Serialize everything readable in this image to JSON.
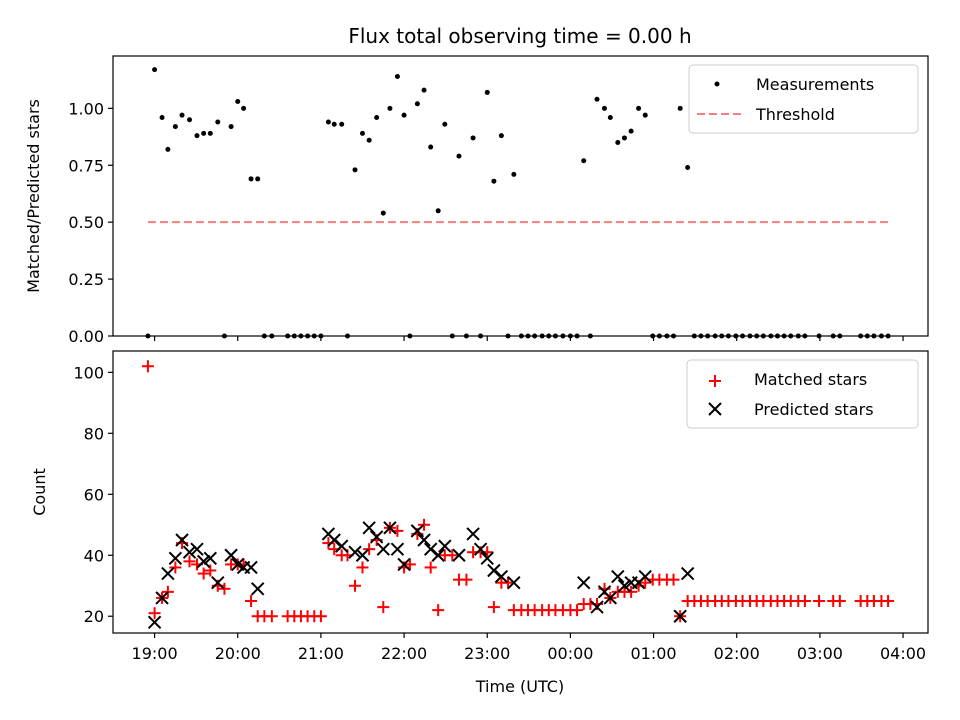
{
  "title": "Flux total observing time = 0.00 h",
  "x_tick_labels": [
    "19:00",
    "20:00",
    "21:00",
    "22:00",
    "23:00",
    "00:00",
    "01:00",
    "02:00",
    "03:00",
    "04:00"
  ],
  "chart_data": [
    {
      "type": "scatter",
      "ylabel": "Matched/Predicted stars",
      "xlabel": "",
      "xlim": [
        -0.5,
        9.3
      ],
      "ylim": [
        0,
        1.23
      ],
      "y_ticks": [
        0.0,
        0.25,
        0.5,
        0.75,
        1.0
      ],
      "y_tick_labels": [
        "0.00",
        "0.25",
        "0.50",
        "0.75",
        "1.00"
      ],
      "legend_position": "upper right",
      "series": [
        {
          "name": "Measurements",
          "marker": "dot",
          "color": "#000000",
          "points": [
            [
              -0.08,
              0.0
            ],
            [
              0.0,
              1.17
            ],
            [
              0.09,
              0.96
            ],
            [
              0.16,
              0.82
            ],
            [
              0.25,
              0.92
            ],
            [
              0.33,
              0.97
            ],
            [
              0.42,
              0.95
            ],
            [
              0.51,
              0.88
            ],
            [
              0.59,
              0.89
            ],
            [
              0.67,
              0.89
            ],
            [
              0.76,
              0.94
            ],
            [
              0.84,
              0.0
            ],
            [
              0.92,
              0.92
            ],
            [
              1.0,
              1.03
            ],
            [
              1.07,
              1.0
            ],
            [
              1.16,
              0.69
            ],
            [
              1.24,
              0.69
            ],
            [
              1.32,
              0.0
            ],
            [
              1.41,
              0.0
            ],
            [
              1.6,
              0.0
            ],
            [
              1.68,
              0.0
            ],
            [
              1.76,
              0.0
            ],
            [
              1.84,
              0.0
            ],
            [
              1.92,
              0.0
            ],
            [
              2.0,
              0.0
            ],
            [
              2.09,
              0.94
            ],
            [
              2.16,
              0.93
            ],
            [
              2.25,
              0.93
            ],
            [
              2.32,
              0.0
            ],
            [
              2.41,
              0.73
            ],
            [
              2.5,
              0.89
            ],
            [
              2.58,
              0.86
            ],
            [
              2.67,
              0.96
            ],
            [
              2.75,
              0.54
            ],
            [
              2.83,
              1.0
            ],
            [
              2.92,
              1.14
            ],
            [
              3.0,
              0.97
            ],
            [
              3.07,
              0.0
            ],
            [
              3.16,
              1.02
            ],
            [
              3.24,
              1.08
            ],
            [
              3.32,
              0.83
            ],
            [
              3.41,
              0.55
            ],
            [
              3.49,
              0.93
            ],
            [
              3.58,
              0.0
            ],
            [
              3.66,
              0.79
            ],
            [
              3.75,
              0.0
            ],
            [
              3.83,
              0.87
            ],
            [
              3.92,
              0.0
            ],
            [
              4.0,
              1.07
            ],
            [
              4.08,
              0.68
            ],
            [
              4.17,
              0.88
            ],
            [
              4.25,
              0.0
            ],
            [
              4.32,
              0.71
            ],
            [
              4.41,
              0.0
            ],
            [
              4.49,
              0.0
            ],
            [
              4.57,
              0.0
            ],
            [
              4.66,
              0.0
            ],
            [
              4.74,
              0.0
            ],
            [
              4.82,
              0.0
            ],
            [
              4.91,
              0.0
            ],
            [
              5.0,
              0.0
            ],
            [
              5.08,
              0.0
            ],
            [
              5.16,
              0.77
            ],
            [
              5.24,
              0.0
            ],
            [
              5.32,
              1.04
            ],
            [
              5.41,
              1.0
            ],
            [
              5.48,
              0.96
            ],
            [
              5.57,
              0.85
            ],
            [
              5.65,
              0.87
            ],
            [
              5.73,
              0.9
            ],
            [
              5.82,
              1.0
            ],
            [
              5.9,
              0.97
            ],
            [
              5.99,
              0.0
            ],
            [
              6.07,
              0.0
            ],
            [
              6.16,
              0.0
            ],
            [
              6.24,
              0.0
            ],
            [
              6.32,
              1.0
            ],
            [
              6.41,
              0.74
            ],
            [
              6.49,
              0.0
            ],
            [
              6.57,
              0.0
            ],
            [
              6.65,
              0.0
            ],
            [
              6.74,
              0.0
            ],
            [
              6.82,
              0.0
            ],
            [
              6.9,
              0.0
            ],
            [
              6.99,
              0.0
            ],
            [
              7.07,
              0.0
            ],
            [
              7.16,
              0.0
            ],
            [
              7.24,
              0.0
            ],
            [
              7.32,
              0.0
            ],
            [
              7.41,
              0.0
            ],
            [
              7.49,
              0.0
            ],
            [
              7.57,
              0.0
            ],
            [
              7.65,
              0.0
            ],
            [
              7.74,
              0.0
            ],
            [
              7.82,
              0.0
            ],
            [
              7.99,
              0.0
            ],
            [
              8.16,
              0.0
            ],
            [
              8.24,
              0.0
            ],
            [
              8.49,
              0.0
            ],
            [
              8.57,
              0.0
            ],
            [
              8.65,
              0.0
            ],
            [
              8.74,
              0.0
            ],
            [
              8.82,
              0.0
            ]
          ]
        },
        {
          "name": "Threshold",
          "style": "dashed-line",
          "color": "#f08080",
          "points": [
            [
              -0.08,
              0.5
            ],
            [
              8.82,
              0.5
            ]
          ]
        }
      ]
    },
    {
      "type": "scatter",
      "ylabel": "Count",
      "xlabel": "Time (UTC)",
      "xlim": [
        -0.5,
        9.3
      ],
      "ylim": [
        14.5,
        107
      ],
      "y_ticks": [
        20,
        40,
        60,
        80,
        100
      ],
      "y_tick_labels": [
        "20",
        "40",
        "60",
        "80",
        "100"
      ],
      "legend_position": "upper right",
      "series": [
        {
          "name": "Matched stars",
          "marker": "plus",
          "color": "#ff0000",
          "points": [
            [
              -0.08,
              102
            ],
            [
              0.0,
              21
            ],
            [
              0.09,
              26
            ],
            [
              0.16,
              28
            ],
            [
              0.25,
              36
            ],
            [
              0.33,
              44
            ],
            [
              0.42,
              38
            ],
            [
              0.51,
              37
            ],
            [
              0.59,
              34
            ],
            [
              0.67,
              35
            ],
            [
              0.76,
              30
            ],
            [
              0.84,
              29
            ],
            [
              0.92,
              37
            ],
            [
              1.0,
              37
            ],
            [
              1.07,
              37
            ],
            [
              1.16,
              25
            ],
            [
              1.24,
              20
            ],
            [
              1.32,
              20
            ],
            [
              1.41,
              20
            ],
            [
              1.6,
              20
            ],
            [
              1.68,
              20
            ],
            [
              1.76,
              20
            ],
            [
              1.84,
              20
            ],
            [
              1.92,
              20
            ],
            [
              2.0,
              20
            ],
            [
              2.09,
              44
            ],
            [
              2.16,
              42
            ],
            [
              2.25,
              40
            ],
            [
              2.32,
              40
            ],
            [
              2.41,
              30
            ],
            [
              2.5,
              36
            ],
            [
              2.58,
              42
            ],
            [
              2.67,
              45
            ],
            [
              2.75,
              23
            ],
            [
              2.83,
              49
            ],
            [
              2.92,
              48
            ],
            [
              3.0,
              36
            ],
            [
              3.07,
              37
            ],
            [
              3.16,
              47
            ],
            [
              3.24,
              50
            ],
            [
              3.32,
              36
            ],
            [
              3.41,
              22
            ],
            [
              3.49,
              40
            ],
            [
              3.58,
              40
            ],
            [
              3.66,
              32
            ],
            [
              3.75,
              32
            ],
            [
              3.83,
              41
            ],
            [
              3.92,
              41
            ],
            [
              4.0,
              41
            ],
            [
              4.08,
              23
            ],
            [
              4.17,
              31
            ],
            [
              4.25,
              31
            ],
            [
              4.32,
              22
            ],
            [
              4.41,
              22
            ],
            [
              4.49,
              22
            ],
            [
              4.57,
              22
            ],
            [
              4.66,
              22
            ],
            [
              4.74,
              22
            ],
            [
              4.82,
              22
            ],
            [
              4.91,
              22
            ],
            [
              5.0,
              22
            ],
            [
              5.08,
              22
            ],
            [
              5.16,
              24
            ],
            [
              5.24,
              24
            ],
            [
              5.32,
              24
            ],
            [
              5.41,
              29
            ],
            [
              5.48,
              26
            ],
            [
              5.57,
              28
            ],
            [
              5.65,
              28
            ],
            [
              5.73,
              28
            ],
            [
              5.82,
              30
            ],
            [
              5.9,
              31
            ],
            [
              5.99,
              32
            ],
            [
              6.07,
              32
            ],
            [
              6.16,
              32
            ],
            [
              6.24,
              32
            ],
            [
              6.32,
              20
            ],
            [
              6.41,
              25
            ],
            [
              6.49,
              25
            ],
            [
              6.57,
              25
            ],
            [
              6.65,
              25
            ],
            [
              6.74,
              25
            ],
            [
              6.82,
              25
            ],
            [
              6.9,
              25
            ],
            [
              6.99,
              25
            ],
            [
              7.07,
              25
            ],
            [
              7.16,
              25
            ],
            [
              7.24,
              25
            ],
            [
              7.32,
              25
            ],
            [
              7.41,
              25
            ],
            [
              7.49,
              25
            ],
            [
              7.57,
              25
            ],
            [
              7.65,
              25
            ],
            [
              7.74,
              25
            ],
            [
              7.82,
              25
            ],
            [
              7.99,
              25
            ],
            [
              8.16,
              25
            ],
            [
              8.24,
              25
            ],
            [
              8.49,
              25
            ],
            [
              8.57,
              25
            ],
            [
              8.65,
              25
            ],
            [
              8.74,
              25
            ],
            [
              8.82,
              25
            ]
          ]
        },
        {
          "name": "Predicted stars",
          "marker": "x",
          "color": "#000000",
          "points": [
            [
              0.0,
              18
            ],
            [
              0.09,
              26
            ],
            [
              0.16,
              34
            ],
            [
              0.25,
              39
            ],
            [
              0.33,
              45
            ],
            [
              0.42,
              41
            ],
            [
              0.51,
              42
            ],
            [
              0.59,
              38
            ],
            [
              0.67,
              39
            ],
            [
              0.76,
              31
            ],
            [
              0.92,
              40
            ],
            [
              1.0,
              37
            ],
            [
              1.07,
              36
            ],
            [
              1.16,
              36
            ],
            [
              1.24,
              29
            ],
            [
              2.09,
              47
            ],
            [
              2.16,
              45
            ],
            [
              2.25,
              43
            ],
            [
              2.41,
              41
            ],
            [
              2.5,
              40
            ],
            [
              2.58,
              49
            ],
            [
              2.67,
              46
            ],
            [
              2.75,
              42
            ],
            [
              2.83,
              49
            ],
            [
              2.92,
              42
            ],
            [
              3.0,
              37
            ],
            [
              3.16,
              48
            ],
            [
              3.24,
              45
            ],
            [
              3.32,
              42
            ],
            [
              3.41,
              40
            ],
            [
              3.49,
              43
            ],
            [
              3.66,
              40
            ],
            [
              3.83,
              47
            ],
            [
              3.92,
              42
            ],
            [
              4.0,
              39
            ],
            [
              4.08,
              35
            ],
            [
              4.17,
              33
            ],
            [
              4.32,
              31
            ],
            [
              5.16,
              31
            ],
            [
              5.32,
              23
            ],
            [
              5.41,
              28
            ],
            [
              5.48,
              26
            ],
            [
              5.57,
              33
            ],
            [
              5.65,
              30
            ],
            [
              5.73,
              31
            ],
            [
              5.82,
              31
            ],
            [
              5.9,
              33
            ],
            [
              6.32,
              20
            ],
            [
              6.41,
              34
            ]
          ]
        }
      ]
    }
  ]
}
